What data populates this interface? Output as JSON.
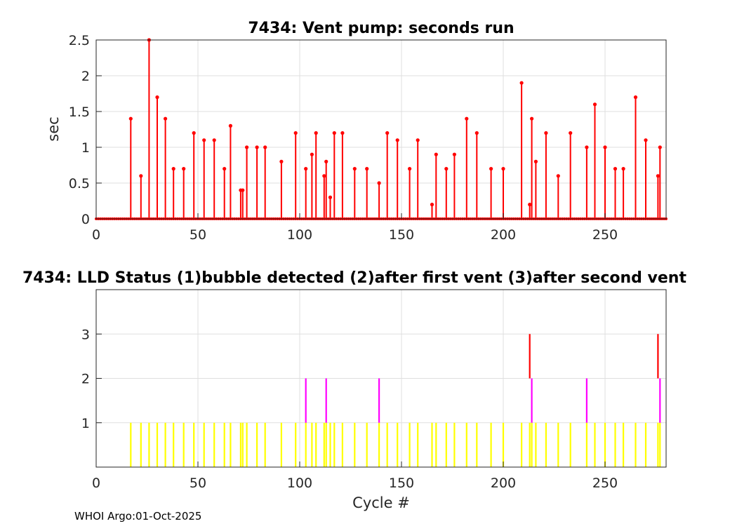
{
  "chart_data": [
    {
      "type": "stem",
      "title": "7434: Vent pump: seconds run",
      "ylabel": "sec",
      "xlabel": "",
      "xlim": [
        0,
        280
      ],
      "ylim": [
        0,
        2.5
      ],
      "xticks": [
        "0",
        "50",
        "100",
        "150",
        "200",
        "250"
      ],
      "yticks": [
        "0",
        "0.5",
        "1",
        "1.5",
        "2",
        "2.5"
      ],
      "grid": true,
      "color": "#ff0000",
      "baseline_x_range": [
        0,
        280
      ],
      "x": [
        17,
        22,
        26,
        30,
        34,
        38,
        43,
        48,
        53,
        58,
        63,
        66,
        71,
        72,
        74,
        79,
        83,
        91,
        98,
        103,
        106,
        108,
        112,
        113,
        115,
        117,
        121,
        127,
        133,
        139,
        143,
        148,
        154,
        158,
        165,
        167,
        172,
        176,
        182,
        187,
        194,
        200,
        209,
        213,
        214,
        216,
        221,
        227,
        233,
        241,
        245,
        250,
        255,
        259,
        265,
        270,
        276,
        277
      ],
      "y": [
        1.4,
        0.6,
        2.5,
        1.7,
        1.4,
        0.7,
        0.7,
        1.2,
        1.1,
        1.1,
        0.7,
        1.3,
        0.4,
        0.4,
        1.0,
        1.0,
        1.0,
        0.8,
        1.2,
        0.7,
        0.9,
        1.2,
        0.6,
        0.8,
        0.3,
        1.2,
        1.2,
        0.7,
        0.7,
        0.5,
        1.2,
        1.1,
        0.7,
        1.1,
        0.2,
        0.9,
        0.7,
        0.9,
        1.4,
        1.2,
        0.7,
        0.7,
        1.9,
        0.2,
        1.4,
        0.8,
        1.2,
        0.6,
        1.2,
        1.0,
        1.6,
        1.0,
        0.7,
        0.7,
        1.7,
        1.1,
        0.6,
        1.0
      ]
    },
    {
      "type": "bar",
      "title": "7434: LLD Status   (1)bubble detected   (2)after first vent  (3)after second vent",
      "xlabel": "Cycle #",
      "ylabel": "",
      "xlim": [
        0,
        280
      ],
      "ylim": [
        0,
        4
      ],
      "xticks": [
        "0",
        "50",
        "100",
        "150",
        "200",
        "250"
      ],
      "yticks": [
        "1",
        "2",
        "3"
      ],
      "grid": true,
      "series": [
        {
          "status": 1,
          "color": "#ffff00",
          "x": [
            17,
            22,
            26,
            30,
            34,
            38,
            43,
            48,
            53,
            58,
            63,
            66,
            71,
            72,
            74,
            79,
            83,
            91,
            98,
            103,
            106,
            108,
            112,
            113,
            115,
            117,
            121,
            127,
            133,
            139,
            143,
            148,
            154,
            158,
            165,
            167,
            172,
            176,
            182,
            187,
            194,
            200,
            209,
            213,
            214,
            216,
            221,
            227,
            233,
            241,
            245,
            250,
            255,
            259,
            265,
            270,
            276,
            277
          ]
        },
        {
          "status": 2,
          "color": "#ff00ff",
          "x": [
            103,
            113,
            139,
            214,
            241,
            277
          ]
        },
        {
          "status": 3,
          "color": "#ff0000",
          "x": [
            213,
            276
          ]
        }
      ]
    }
  ],
  "footer": "WHOI Argo:01-Oct-2025"
}
